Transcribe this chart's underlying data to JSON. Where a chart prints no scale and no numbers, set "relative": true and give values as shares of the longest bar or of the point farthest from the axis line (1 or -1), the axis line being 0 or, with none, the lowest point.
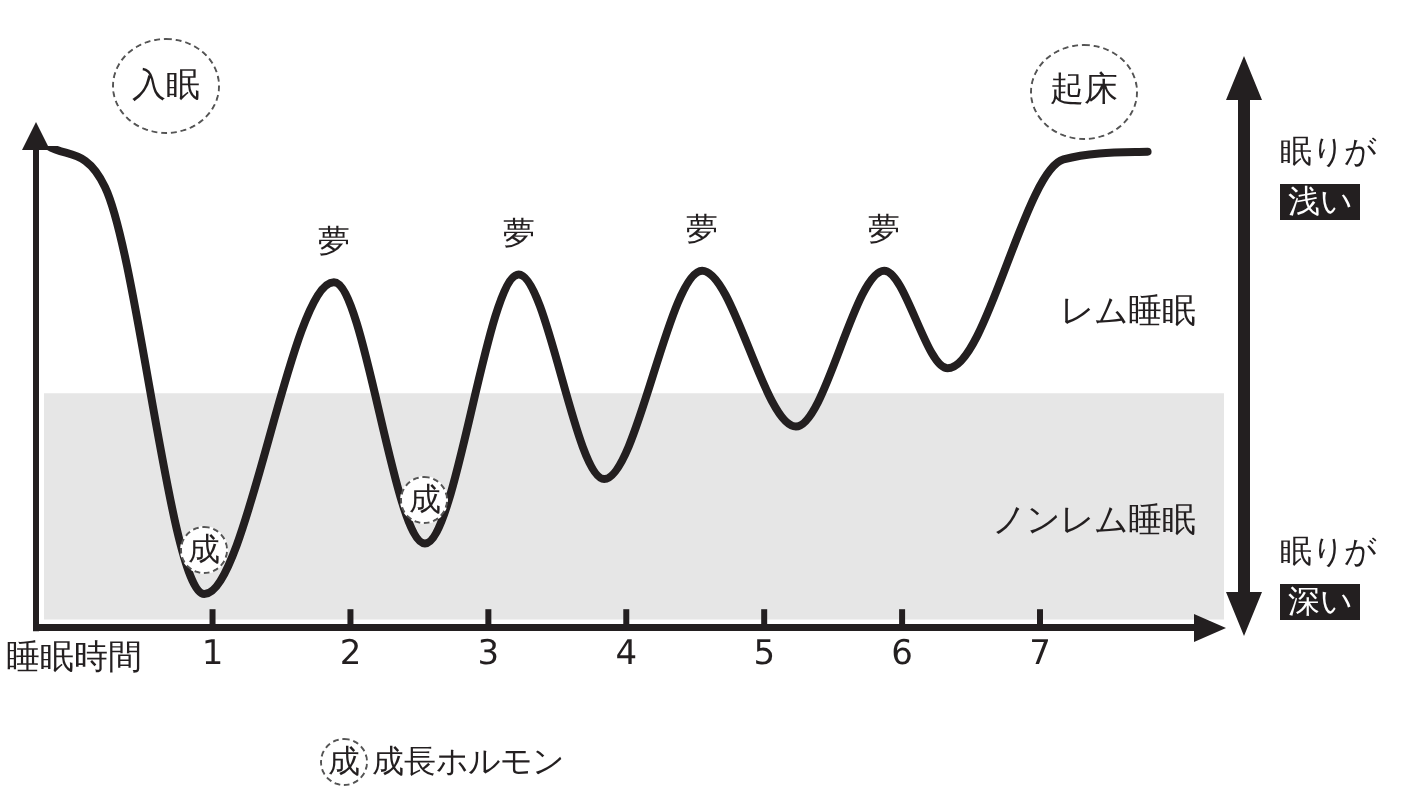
{
  "chart_data": {
    "type": "line",
    "xlabel": "睡眠時間",
    "relative": true,
    "legend": false,
    "grid": false,
    "marker": "none",
    "line_style": "solid",
    "xlim": [
      -0.28,
      8.16
    ],
    "xticks": [
      1,
      2,
      3,
      4,
      5,
      6,
      7
    ],
    "series": [
      {
        "color": "#231f20",
        "x": [
          -0.19,
          0.22,
          0.94,
          1.88,
          2.54,
          3.22,
          3.84,
          4.55,
          5.23,
          5.87,
          6.33,
          7.17,
          7.78
        ],
        "values": [
          1.0,
          0.915,
          0.069,
          0.717,
          0.174,
          0.733,
          0.308,
          0.741,
          0.417,
          0.741,
          0.538,
          0.972,
          0.988
        ]
      }
    ],
    "bands": [
      {
        "axis": "y",
        "from": 0.016,
        "to": 0.486,
        "label": "ノンレム睡眠",
        "color": "#e6e6e6"
      }
    ],
    "annotations": [
      {
        "text": "入眠",
        "x": -0.19,
        "y": 1.0
      },
      {
        "text": "起床",
        "x": 7.78,
        "y": 0.988
      },
      {
        "text": "夢",
        "x": 1.88,
        "y": 0.717
      },
      {
        "text": "夢",
        "x": 3.22,
        "y": 0.733
      },
      {
        "text": "夢",
        "x": 4.55,
        "y": 0.741
      },
      {
        "text": "夢",
        "x": 5.87,
        "y": 0.741
      },
      {
        "text": "成",
        "x": 0.94,
        "y": 0.069
      },
      {
        "text": "成",
        "x": 2.54,
        "y": 0.174
      },
      "レム睡眠",
      "眠りが",
      "浅い",
      "眠りが",
      "深い",
      "成",
      "成長ホルモン"
    ]
  }
}
